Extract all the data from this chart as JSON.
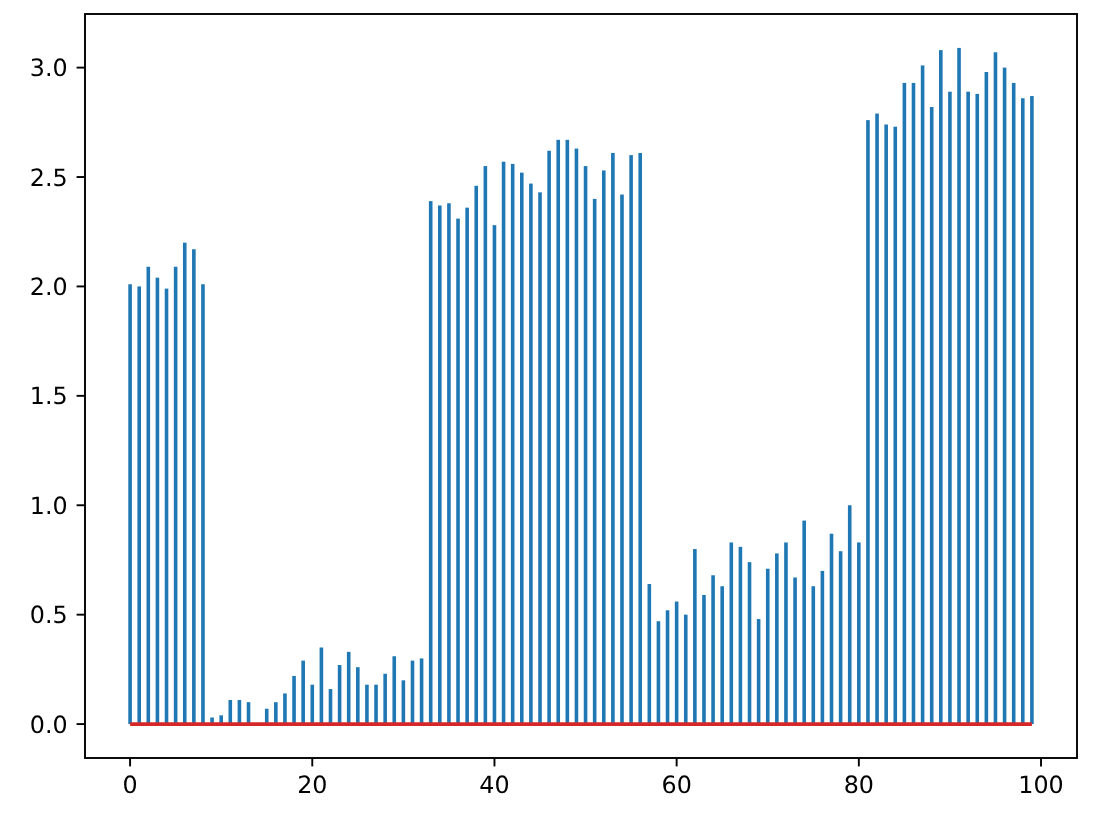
{
  "chart_data": {
    "type": "bar",
    "color": "#1f77b4",
    "x": [
      0,
      1,
      2,
      3,
      4,
      5,
      6,
      7,
      8,
      9,
      10,
      11,
      12,
      13,
      14,
      15,
      16,
      17,
      18,
      19,
      20,
      21,
      22,
      23,
      24,
      25,
      26,
      27,
      28,
      29,
      30,
      31,
      32,
      33,
      34,
      35,
      36,
      37,
      38,
      39,
      40,
      41,
      42,
      43,
      44,
      45,
      46,
      47,
      48,
      49,
      50,
      51,
      52,
      53,
      54,
      55,
      56,
      57,
      58,
      59,
      60,
      61,
      62,
      63,
      64,
      65,
      66,
      67,
      68,
      69,
      70,
      71,
      72,
      73,
      74,
      75,
      76,
      77,
      78,
      79,
      80,
      81,
      82,
      83,
      84,
      85,
      86,
      87,
      88,
      89,
      90,
      91,
      92,
      93,
      94,
      95,
      96,
      97,
      98,
      99
    ],
    "values": [
      2.01,
      2.0,
      2.09,
      2.04,
      1.99,
      2.09,
      2.2,
      2.17,
      2.01,
      0.03,
      0.04,
      0.11,
      0.11,
      0.1,
      0,
      0.07,
      0.1,
      0.14,
      0.22,
      0.29,
      0.18,
      0.35,
      0.16,
      0.27,
      0.33,
      0.26,
      0.18,
      0.18,
      0.23,
      0.31,
      0.2,
      0.29,
      0.3,
      2.39,
      2.37,
      2.38,
      2.31,
      2.36,
      2.46,
      2.55,
      2.28,
      2.57,
      2.56,
      2.52,
      2.47,
      2.43,
      2.62,
      2.67,
      2.67,
      2.63,
      2.55,
      2.4,
      2.53,
      2.61,
      2.42,
      2.6,
      2.61,
      0.64,
      0.47,
      0.52,
      0.56,
      0.5,
      0.8,
      0.59,
      0.68,
      0.63,
      0.83,
      0.81,
      0.74,
      0.48,
      0.71,
      0.78,
      0.83,
      0.67,
      0.93,
      0.63,
      0.7,
      0.87,
      0.79,
      1.0,
      0.83,
      2.76,
      2.79,
      2.74,
      2.73,
      2.93,
      2.93,
      3.01,
      2.82,
      3.08,
      2.89,
      3.09,
      2.89,
      2.88,
      2.98,
      3.07,
      3.0,
      2.93,
      2.86,
      2.87
    ],
    "xlim": [
      -4.95,
      103.95
    ],
    "xticks": [
      0,
      20,
      40,
      60,
      80,
      100
    ],
    "ylim": [
      -0.155,
      3.245
    ],
    "yticks": [
      {
        "value": 0,
        "label": "0.0"
      },
      {
        "value": 0.5,
        "label": "0.5"
      },
      {
        "value": 1,
        "label": "1.0"
      },
      {
        "value": 1.5,
        "label": "1.5"
      },
      {
        "value": 2,
        "label": "2.0"
      },
      {
        "value": 2.5,
        "label": "2.5"
      },
      {
        "value": 3,
        "label": "3.0"
      }
    ],
    "ref_lines": [
      {
        "axis": "y",
        "value": 0,
        "color": "#d62728"
      }
    ]
  }
}
